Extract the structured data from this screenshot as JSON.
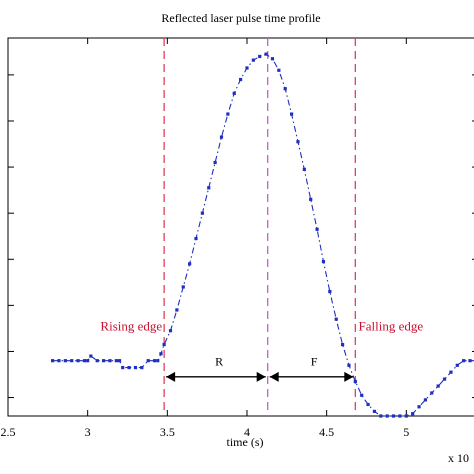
{
  "chart_data": {
    "type": "line",
    "title": "Reflected laser pulse time profile",
    "xlabel": "time (s)",
    "ylabel": "",
    "x_multiplier_label": "x 10",
    "xlim": [
      2.5,
      5.45
    ],
    "ylim": [
      0,
      8.2
    ],
    "xticks": [
      2.5,
      3,
      3.5,
      4,
      4.5,
      5
    ],
    "xtick_labels": [
      "2.5",
      "3",
      "3.5",
      "4",
      "4.5",
      "5"
    ],
    "yticks": [
      0.4,
      1.4,
      2.4,
      3.4,
      4.4,
      5.4,
      6.4,
      7.4
    ],
    "series": [
      {
        "color": "#1f2fbf",
        "line_style": "dash-dot",
        "marker": "point",
        "x": [
          2.78,
          2.82,
          2.86,
          2.9,
          2.94,
          2.98,
          3.0,
          3.02,
          3.06,
          3.1,
          3.14,
          3.18,
          3.2,
          3.22,
          3.26,
          3.3,
          3.34,
          3.38,
          3.42,
          3.44,
          3.46,
          3.48,
          3.52,
          3.56,
          3.6,
          3.64,
          3.68,
          3.72,
          3.76,
          3.8,
          3.84,
          3.88,
          3.92,
          3.96,
          4.0,
          4.04,
          4.08,
          4.12,
          4.16,
          4.2,
          4.24,
          4.28,
          4.32,
          4.36,
          4.4,
          4.44,
          4.48,
          4.52,
          4.56,
          4.6,
          4.64,
          4.68,
          4.72,
          4.76,
          4.8,
          4.84,
          4.88,
          4.92,
          4.96,
          5.0,
          5.04,
          5.08,
          5.12,
          5.16,
          5.2,
          5.24,
          5.28,
          5.32,
          5.36,
          5.4,
          5.44
        ],
        "y": [
          1.2,
          1.2,
          1.2,
          1.2,
          1.2,
          1.2,
          1.2,
          1.3,
          1.2,
          1.2,
          1.2,
          1.2,
          1.2,
          1.05,
          1.05,
          1.05,
          1.05,
          1.2,
          1.2,
          1.2,
          1.35,
          1.55,
          1.85,
          2.3,
          2.8,
          3.3,
          3.85,
          4.4,
          4.95,
          5.5,
          6.05,
          6.55,
          7.0,
          7.3,
          7.55,
          7.72,
          7.8,
          7.85,
          7.75,
          7.5,
          7.1,
          6.55,
          5.95,
          5.35,
          4.7,
          4.05,
          3.35,
          2.7,
          2.1,
          1.55,
          1.1,
          0.75,
          0.45,
          0.25,
          0.1,
          0.0,
          0.0,
          0.0,
          0.0,
          0.0,
          0.05,
          0.2,
          0.35,
          0.5,
          0.65,
          0.8,
          0.95,
          1.1,
          1.2,
          1.2,
          1.2
        ]
      }
    ],
    "vertical_lines": [
      {
        "x": 3.48,
        "color": "#e0415b",
        "style": "dashed"
      },
      {
        "x": 4.13,
        "color": "#c45fd0",
        "style": "dashed"
      },
      {
        "x": 4.68,
        "color": "#e0415b",
        "style": "dashed"
      }
    ],
    "annotations": [
      {
        "text": "Rising edge",
        "x": 3.08,
        "y": 1.85,
        "color": "#c8102e"
      },
      {
        "text": "Falling edge",
        "x": 4.7,
        "y": 1.85,
        "color": "#c8102e"
      },
      {
        "text": "R",
        "x": 3.8,
        "y": 1.1,
        "color": "#000000"
      },
      {
        "text": "F",
        "x": 4.4,
        "y": 1.1,
        "color": "#000000"
      }
    ],
    "arrows": [
      {
        "label": "R",
        "x_start": 3.48,
        "x_end": 4.13,
        "y": 0.85
      },
      {
        "label": "F",
        "x_start": 4.13,
        "x_end": 4.68,
        "y": 0.85
      }
    ],
    "grid": false
  }
}
